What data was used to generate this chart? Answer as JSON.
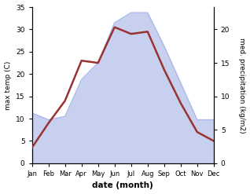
{
  "months": [
    "Jan",
    "Feb",
    "Mar",
    "Apr",
    "May",
    "Jun",
    "Jul",
    "Aug",
    "Sep",
    "Oct",
    "Nov",
    "Dec"
  ],
  "temp": [
    3.5,
    9.0,
    14.0,
    23.0,
    22.5,
    30.5,
    29.0,
    29.5,
    21.0,
    13.5,
    7.0,
    5.0
  ],
  "precip": [
    7.5,
    6.5,
    7.0,
    12.5,
    15.0,
    21.0,
    22.5,
    22.5,
    17.5,
    12.0,
    6.5,
    6.5
  ],
  "temp_color": "#993333",
  "precip_fill_color": "#c8d0f0",
  "precip_edge_color": "#aab8e8",
  "ylabel_left": "max temp (C)",
  "ylabel_right": "med. precipitation (kg/m2)",
  "xlabel": "date (month)",
  "ylim_left": [
    0,
    35
  ],
  "ylim_right": [
    0,
    23.33
  ],
  "yticks_left": [
    0,
    5,
    10,
    15,
    20,
    25,
    30,
    35
  ],
  "yticks_right": [
    0,
    5,
    10,
    15,
    20
  ],
  "bg_color": "#ffffff",
  "temp_lw": 1.8,
  "precip_lw": 1.0
}
